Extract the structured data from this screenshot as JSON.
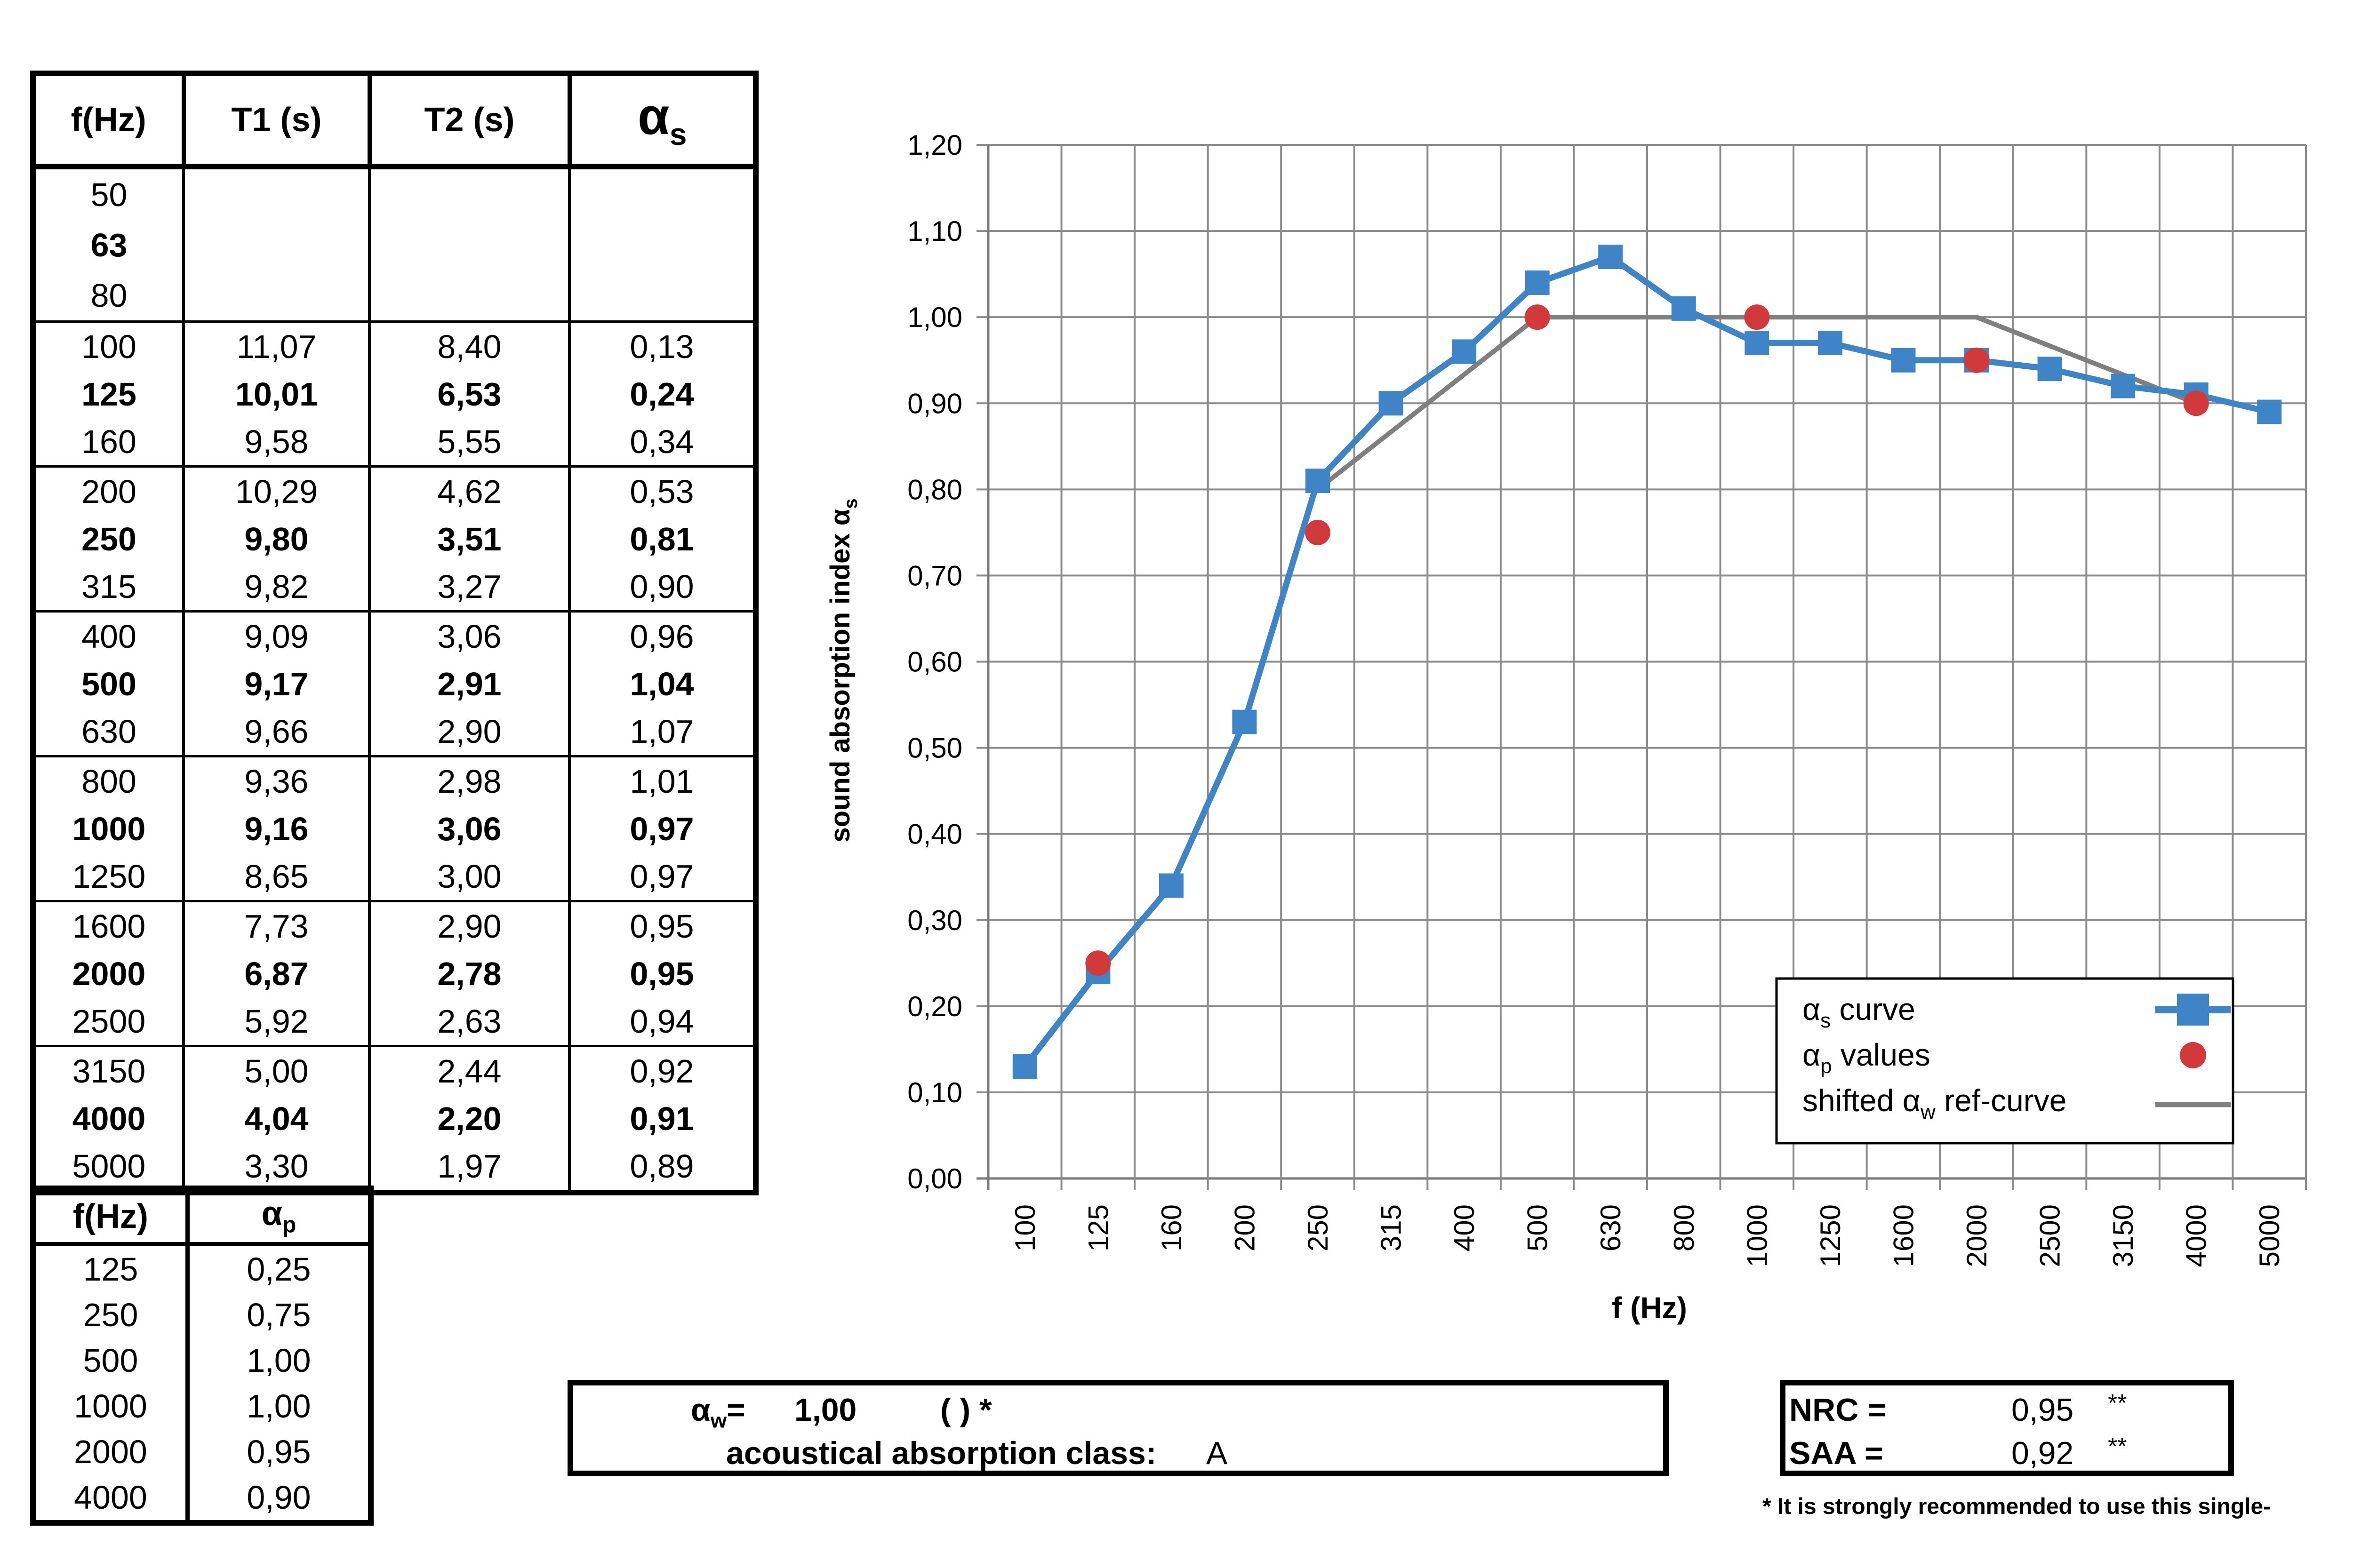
{
  "table_main": {
    "headers": {
      "f": "f(Hz)",
      "t1": "T1 (s)",
      "t2": "T2 (s)",
      "alpha_sym": "α",
      "alpha_sub": "s"
    },
    "empty_rows": [
      {
        "f": "50",
        "bold": false
      },
      {
        "f": "63",
        "bold": true
      },
      {
        "f": "80",
        "bold": false
      }
    ],
    "rows": [
      {
        "f": "100",
        "t1": "11,07",
        "t2": "8,40",
        "a": "0,13",
        "bold": false
      },
      {
        "f": "125",
        "t1": "10,01",
        "t2": "6,53",
        "a": "0,24",
        "bold": true
      },
      {
        "f": "160",
        "t1": "9,58",
        "t2": "5,55",
        "a": "0,34",
        "bold": false
      },
      {
        "f": "200",
        "t1": "10,29",
        "t2": "4,62",
        "a": "0,53",
        "bold": false
      },
      {
        "f": "250",
        "t1": "9,80",
        "t2": "3,51",
        "a": "0,81",
        "bold": true
      },
      {
        "f": "315",
        "t1": "9,82",
        "t2": "3,27",
        "a": "0,90",
        "bold": false
      },
      {
        "f": "400",
        "t1": "9,09",
        "t2": "3,06",
        "a": "0,96",
        "bold": false
      },
      {
        "f": "500",
        "t1": "9,17",
        "t2": "2,91",
        "a": "1,04",
        "bold": true
      },
      {
        "f": "630",
        "t1": "9,66",
        "t2": "2,90",
        "a": "1,07",
        "bold": false
      },
      {
        "f": "800",
        "t1": "9,36",
        "t2": "2,98",
        "a": "1,01",
        "bold": false
      },
      {
        "f": "1000",
        "t1": "9,16",
        "t2": "3,06",
        "a": "0,97",
        "bold": true
      },
      {
        "f": "1250",
        "t1": "8,65",
        "t2": "3,00",
        "a": "0,97",
        "bold": false
      },
      {
        "f": "1600",
        "t1": "7,73",
        "t2": "2,90",
        "a": "0,95",
        "bold": false
      },
      {
        "f": "2000",
        "t1": "6,87",
        "t2": "2,78",
        "a": "0,95",
        "bold": true
      },
      {
        "f": "2500",
        "t1": "5,92",
        "t2": "2,63",
        "a": "0,94",
        "bold": false
      },
      {
        "f": "3150",
        "t1": "5,00",
        "t2": "2,44",
        "a": "0,92",
        "bold": false
      },
      {
        "f": "4000",
        "t1": "4,04",
        "t2": "2,20",
        "a": "0,91",
        "bold": true
      },
      {
        "f": "5000",
        "t1": "3,30",
        "t2": "1,97",
        "a": "0,89",
        "bold": false
      }
    ]
  },
  "table_ap": {
    "headers": {
      "f": "f(Hz)",
      "alpha_sym": "α",
      "alpha_sub": "p"
    },
    "rows": [
      {
        "f": "125",
        "a": "0,25"
      },
      {
        "f": "250",
        "a": "0,75"
      },
      {
        "f": "500",
        "a": "1,00"
      },
      {
        "f": "1000",
        "a": "1,00"
      },
      {
        "f": "2000",
        "a": "0,95"
      },
      {
        "f": "4000",
        "a": "0,90"
      }
    ]
  },
  "chart_data": {
    "type": "line",
    "x": [
      "100",
      "125",
      "160",
      "200",
      "250",
      "315",
      "400",
      "500",
      "630",
      "800",
      "1000",
      "1250",
      "1600",
      "2000",
      "2500",
      "3150",
      "4000",
      "5000"
    ],
    "ylim": [
      0,
      1.2
    ],
    "yticks": [
      "0,00",
      "0,10",
      "0,20",
      "0,30",
      "0,40",
      "0,50",
      "0,60",
      "0,70",
      "0,80",
      "0,90",
      "1,00",
      "1,10",
      "1,20"
    ],
    "xlabel": "f (Hz)",
    "ylabel_main": "sound absorption index α",
    "ylabel_sub": "s",
    "grid": true,
    "legend_position": "bottom-right",
    "series": [
      {
        "name": "αs curve",
        "legend_main": "α",
        "legend_sub": "s",
        "legend_rest": " curve",
        "kind": "line-square",
        "color": "#3E84C6",
        "values": [
          0.13,
          0.24,
          0.34,
          0.53,
          0.81,
          0.9,
          0.96,
          1.04,
          1.07,
          1.01,
          0.97,
          0.97,
          0.95,
          0.95,
          0.94,
          0.92,
          0.91,
          0.89
        ]
      },
      {
        "name": "αp values",
        "legend_main": "α",
        "legend_sub": "p",
        "legend_rest": " values",
        "kind": "dots",
        "color": "#D2393A",
        "points": [
          {
            "x": "125",
            "y": 0.25
          },
          {
            "x": "250",
            "y": 0.75
          },
          {
            "x": "500",
            "y": 1.0
          },
          {
            "x": "1000",
            "y": 1.0
          },
          {
            "x": "2000",
            "y": 0.95
          },
          {
            "x": "4000",
            "y": 0.9
          }
        ]
      },
      {
        "name": "shifted αw ref-curve",
        "legend_main": "shifted α",
        "legend_sub": "w",
        "legend_rest": " ref-curve",
        "kind": "line",
        "color": "#7F7F7F",
        "points": [
          {
            "x": "250",
            "y": 0.8
          },
          {
            "x": "500",
            "y": 1.0
          },
          {
            "x": "2000",
            "y": 1.0
          },
          {
            "x": "4000",
            "y": 0.9
          }
        ]
      }
    ]
  },
  "rating": {
    "aw_sym": "α",
    "aw_sub": "w",
    "aw_eq": "=",
    "aw_value": "1,00",
    "aw_paren": "(            ) *",
    "class_label": "acoustical absorption class:",
    "class_value": "A",
    "nrc_label": "NRC =",
    "nrc_value": "0,95",
    "nrc_mark": "**",
    "saa_label": "SAA =",
    "saa_value": "0,92",
    "saa_mark": "**",
    "footnote": "* It is strongly recommended to use this single-"
  }
}
